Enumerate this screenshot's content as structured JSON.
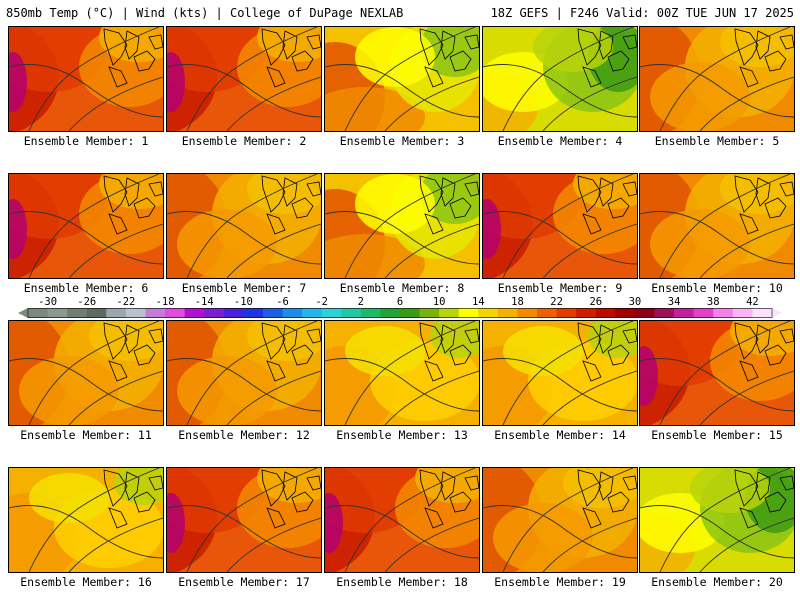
{
  "header": {
    "left": "850mb Temp (°C) | Wind (kts) | College of DuPage NEXLAB",
    "right": "18Z GEFS | F246 Valid: 00Z TUE JUN 17 2025"
  },
  "colorbar": {
    "labels": [
      "-30",
      "-26",
      "-22",
      "-18",
      "-14",
      "-10",
      "-6",
      "-2",
      "2",
      "6",
      "10",
      "14",
      "18",
      "22",
      "26",
      "30",
      "34",
      "38",
      "42"
    ],
    "colors": [
      "#7a8a7e",
      "#8a9a8c",
      "#6f7f73",
      "#5c6c60",
      "#9aa6b0",
      "#b7c3cf",
      "#c27bd6",
      "#e04be0",
      "#b20fd0",
      "#7b1fd1",
      "#4a21d8",
      "#1f33e0",
      "#1e5de6",
      "#1f8ce6",
      "#22b7e6",
      "#2ad4d4",
      "#21c9a2",
      "#1fb96a",
      "#22a334",
      "#3c9b14",
      "#78b40c",
      "#b8d40a",
      "#ffff00",
      "#f5d500",
      "#f5b000",
      "#f08a00",
      "#ec6000",
      "#e03c00",
      "#d01e00",
      "#bb0a00",
      "#a00000",
      "#8a0018",
      "#a0105a",
      "#c4209c",
      "#e540c8",
      "#f580e8",
      "#fbb4f4",
      "#fde0fb"
    ]
  },
  "members": [
    {
      "label": "Ensemble Member: 1",
      "scheme": "hot"
    },
    {
      "label": "Ensemble Member: 2",
      "scheme": "hot"
    },
    {
      "label": "Ensemble Member: 3",
      "scheme": "mixed"
    },
    {
      "label": "Ensemble Member: 4",
      "scheme": "cool"
    },
    {
      "label": "Ensemble Member: 5",
      "scheme": "warm"
    },
    {
      "label": "Ensemble Member: 6",
      "scheme": "hot"
    },
    {
      "label": "Ensemble Member: 7",
      "scheme": "warm"
    },
    {
      "label": "Ensemble Member: 8",
      "scheme": "mixed"
    },
    {
      "label": "Ensemble Member: 9",
      "scheme": "hot"
    },
    {
      "label": "Ensemble Member: 10",
      "scheme": "warm"
    },
    {
      "label": "Ensemble Member: 11",
      "scheme": "warm"
    },
    {
      "label": "Ensemble Member: 12",
      "scheme": "warm"
    },
    {
      "label": "Ensemble Member: 13",
      "scheme": "mild"
    },
    {
      "label": "Ensemble Member: 14",
      "scheme": "mild"
    },
    {
      "label": "Ensemble Member: 15",
      "scheme": "hot"
    },
    {
      "label": "Ensemble Member: 16",
      "scheme": "mild"
    },
    {
      "label": "Ensemble Member: 17",
      "scheme": "hot"
    },
    {
      "label": "Ensemble Member: 18",
      "scheme": "hot"
    },
    {
      "label": "Ensemble Member: 19",
      "scheme": "warm"
    },
    {
      "label": "Ensemble Member: 20",
      "scheme": "cool"
    }
  ]
}
